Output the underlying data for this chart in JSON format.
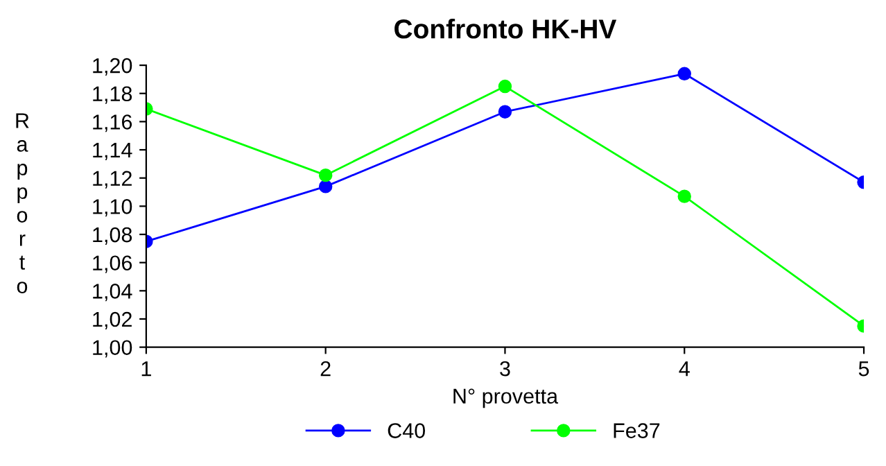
{
  "chart_data": {
    "type": "line",
    "title": "Confronto HK-HV",
    "xlabel": "N° provetta",
    "ylabel": "Rapporto",
    "x": [
      1,
      2,
      3,
      4,
      5
    ],
    "series": [
      {
        "name": "C40",
        "color": "#0000ff",
        "values": [
          1.075,
          1.114,
          1.167,
          1.194,
          1.117
        ]
      },
      {
        "name": "Fe37",
        "color": "#00ff00",
        "values": [
          1.169,
          1.122,
          1.185,
          1.107,
          1.015
        ]
      }
    ],
    "xlim": [
      1,
      5
    ],
    "xticks": [
      1,
      2,
      3,
      4,
      5
    ],
    "ylim": [
      1.0,
      1.2
    ],
    "yticks": [
      {
        "value": 1.0,
        "label": "1,00"
      },
      {
        "value": 1.02,
        "label": "1,02"
      },
      {
        "value": 1.04,
        "label": "1,04"
      },
      {
        "value": 1.06,
        "label": "1,06"
      },
      {
        "value": 1.08,
        "label": "1,08"
      },
      {
        "value": 1.1,
        "label": "1,10"
      },
      {
        "value": 1.12,
        "label": "1,12"
      },
      {
        "value": 1.14,
        "label": "1,14"
      },
      {
        "value": 1.16,
        "label": "1,16"
      },
      {
        "value": 1.18,
        "label": "1,18"
      },
      {
        "value": 1.2,
        "label": "1,20"
      }
    ],
    "grid": false,
    "legend": "bottom",
    "marker": "circle",
    "line_style": "solid"
  }
}
